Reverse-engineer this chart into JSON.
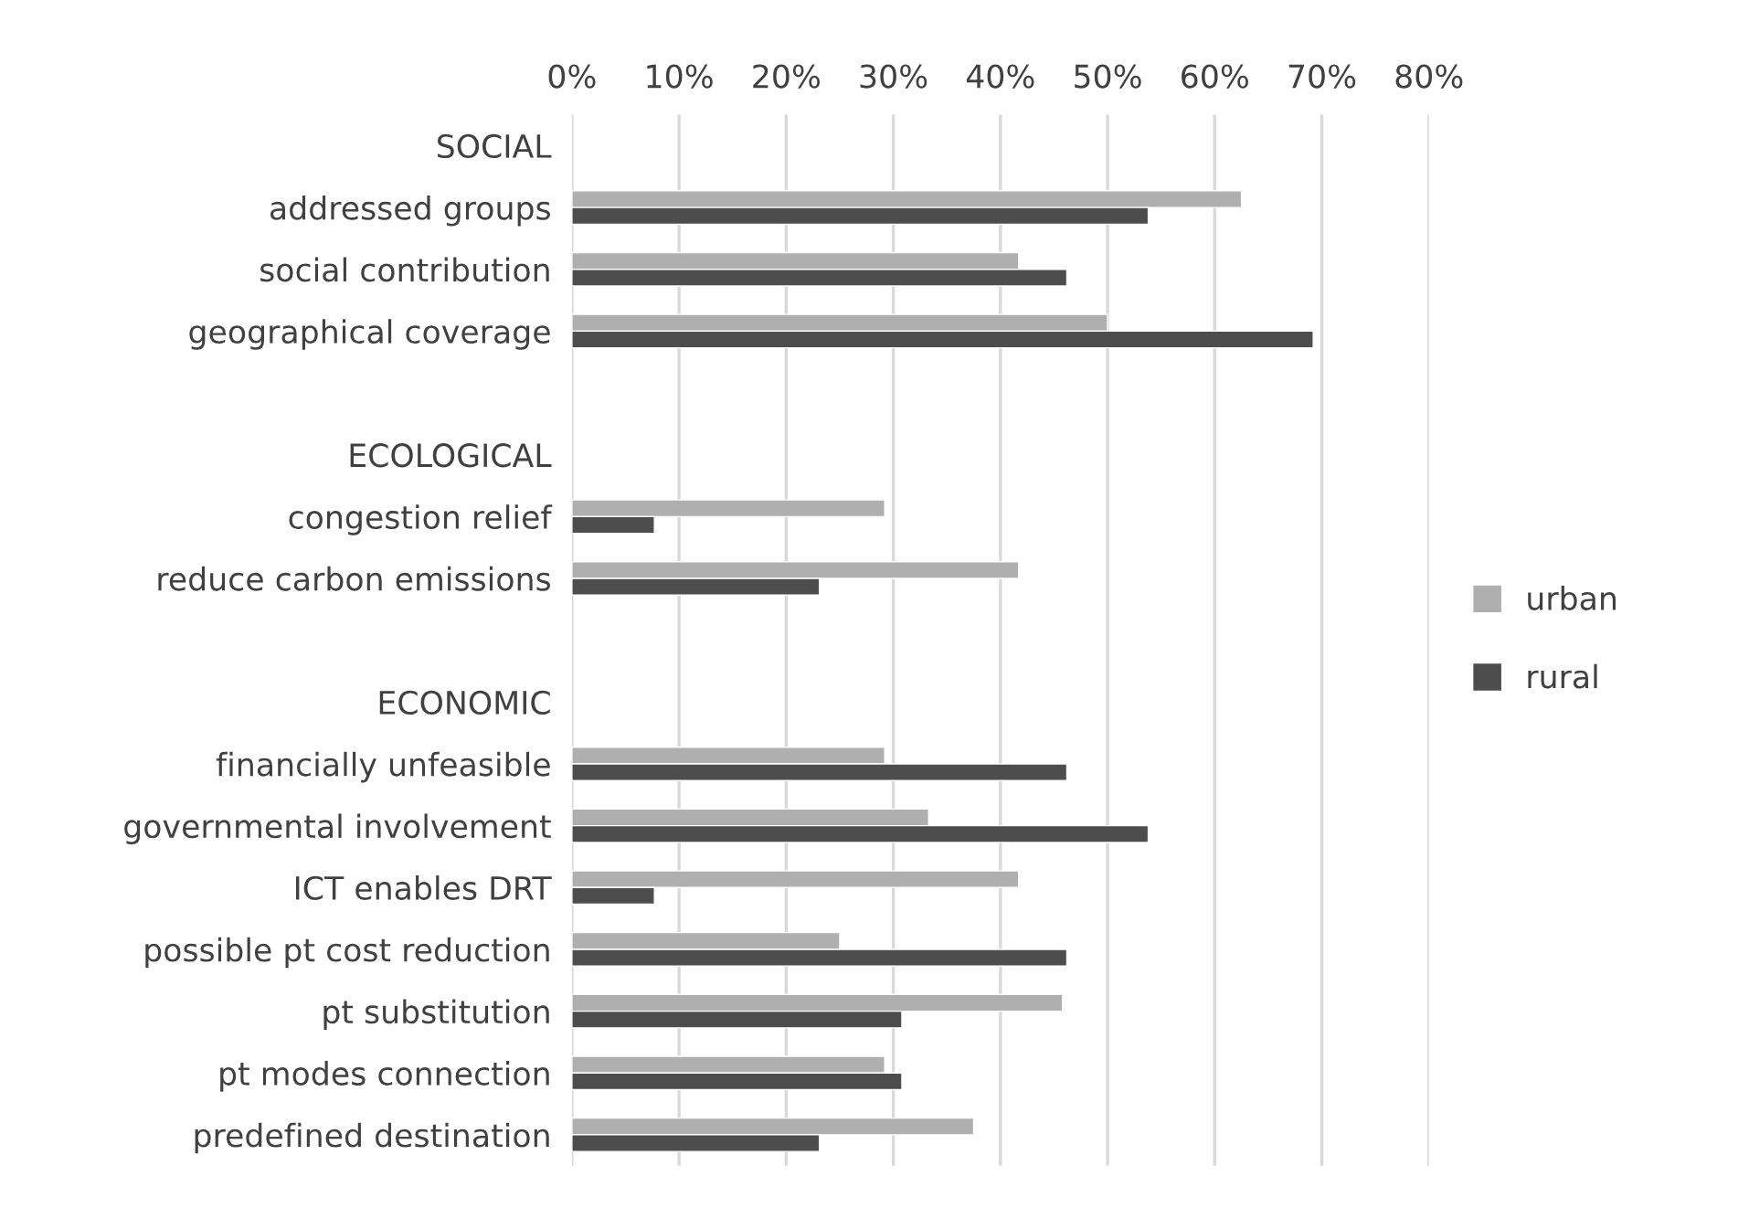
{
  "chart_data": {
    "type": "bar",
    "orientation": "horizontal",
    "categories": [
      "SOCIAL",
      "addressed groups",
      "social contribution",
      "geographical coverage",
      null,
      "ECOLOGICAL",
      "congestion relief",
      "reduce carbon emissions",
      null,
      "ECONOMIC",
      "financially unfeasible",
      "governmental involvement",
      "ICT enables DRT",
      "possible pt cost reduction",
      "pt substitution",
      "pt modes connection",
      "predefined destination"
    ],
    "series": [
      {
        "name": "urban",
        "color": "#afafaf",
        "values": [
          null,
          62.5,
          41.7,
          50.0,
          null,
          null,
          29.2,
          41.7,
          null,
          null,
          29.2,
          33.3,
          41.7,
          25.0,
          45.8,
          29.2,
          37.5
        ]
      },
      {
        "name": "rural",
        "color": "#4d4d4d",
        "values": [
          null,
          53.8,
          46.2,
          69.2,
          null,
          null,
          7.7,
          23.1,
          null,
          null,
          46.2,
          53.8,
          7.7,
          46.2,
          30.8,
          30.8,
          23.1
        ]
      }
    ],
    "xlim": [
      0,
      80
    ],
    "xticks": [
      {
        "value": 0,
        "label": "0%"
      },
      {
        "value": 10,
        "label": "10%"
      },
      {
        "value": 20,
        "label": "20%"
      },
      {
        "value": 30,
        "label": "30%"
      },
      {
        "value": 40,
        "label": "40%"
      },
      {
        "value": 50,
        "label": "50%"
      },
      {
        "value": 60,
        "label": "60%"
      },
      {
        "value": 70,
        "label": "70%"
      },
      {
        "value": 80,
        "label": "80%"
      }
    ],
    "grid": "x",
    "legend": "right"
  }
}
